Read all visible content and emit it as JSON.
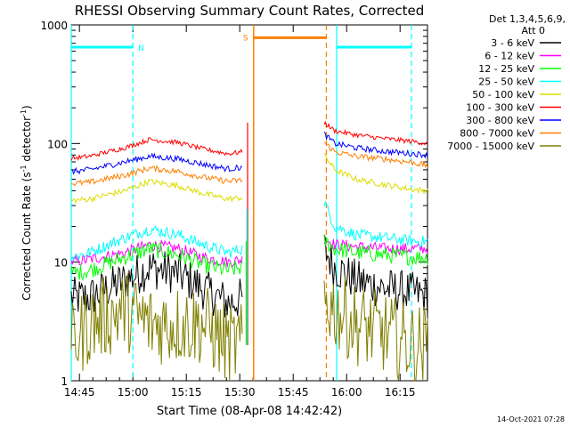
{
  "chart_data": {
    "type": "line",
    "title": "RHESSI Observing Summary Count Rates, Corrected",
    "xlabel": "Start Time (08-Apr-08 14:42:42)",
    "ylabel_main": "Corrected Count Rate (s",
    "ylabel_sup1": "-1",
    "ylabel_mid": " detector",
    "ylabel_sup2": "-1",
    "ylabel_end": ")",
    "yscale": "log",
    "ylim": [
      1,
      1000
    ],
    "xlim_minutes": [
      0,
      100
    ],
    "x_ticks": [
      "14:45",
      "15:00",
      "15:15",
      "15:30",
      "15:45",
      "16:00",
      "16:15"
    ],
    "y_ticks": [
      "1",
      "10",
      "100",
      "1000"
    ],
    "legend": {
      "header1": "Det 1,3,4,5,6,9,",
      "header2": "Att 0",
      "placement": "right"
    },
    "series": [
      {
        "name": "3 - 6 keV",
        "color": "#000000",
        "pre": [
          5,
          5,
          7,
          9,
          8,
          6,
          4.5,
          5
        ],
        "post": [
          13,
          9,
          7,
          6,
          5.5,
          5.2
        ],
        "noise": 0.18
      },
      {
        "name": "6 - 12 keV",
        "color": "#ff00ff",
        "pre": [
          10,
          10.5,
          12,
          14,
          13,
          11,
          10,
          10.5
        ],
        "post": [
          16,
          14,
          13.5,
          13,
          13,
          13
        ],
        "noise": 0.05
      },
      {
        "name": "12 - 25 keV",
        "color": "#00ff00",
        "pre": [
          8,
          8.5,
          11,
          13,
          11.5,
          9.5,
          8.5,
          9
        ],
        "post": [
          15,
          13,
          12,
          11.5,
          11,
          11
        ],
        "noise": 0.07
      },
      {
        "name": "25 - 50 keV",
        "color": "#00ffff",
        "pre": [
          11,
          12,
          16,
          19,
          17,
          14,
          12,
          13
        ],
        "post": [
          32,
          20,
          17,
          16,
          15,
          15
        ],
        "noise": 0.05
      },
      {
        "name": "50 - 100 keV",
        "color": "#dddd00",
        "pre": [
          33,
          34,
          40,
          48,
          44,
          38,
          34,
          35
        ],
        "post": [
          80,
          60,
          50,
          45,
          41,
          40
        ],
        "noise": 0.025
      },
      {
        "name": "100 - 300 keV",
        "color": "#ff0000",
        "pre": [
          75,
          78,
          92,
          108,
          102,
          90,
          82,
          85
        ],
        "post": [
          150,
          128,
          118,
          110,
          104,
          100
        ],
        "noise": 0.02
      },
      {
        "name": "300 - 800 keV",
        "color": "#0000ff",
        "pre": [
          58,
          60,
          70,
          78,
          74,
          67,
          61,
          63
        ],
        "post": [
          120,
          100,
          92,
          86,
          82,
          80
        ],
        "noise": 0.025
      },
      {
        "name": "800 - 7000 keV",
        "color": "#ff8000",
        "pre": [
          46,
          47,
          54,
          62,
          58,
          52,
          48,
          49
        ],
        "post": [
          102,
          85,
          78,
          74,
          69,
          65
        ],
        "noise": 0.025
      },
      {
        "name": "7000 - 15000 keV",
        "color": "#808000",
        "pre": [
          2,
          3,
          4,
          3,
          3,
          3,
          2,
          2
        ],
        "post": [
          5,
          4,
          3,
          2.5,
          2,
          2
        ],
        "noise": 0.35
      }
    ],
    "pre_x": [
      0,
      5,
      15,
      22,
      30,
      37,
      44,
      48
    ],
    "post_x": [
      71,
      74,
      80,
      88,
      96,
      100
    ],
    "flare_spike": [
      {
        "name": "red",
        "x": 49.5,
        "y": 150,
        "color": "#ff0000"
      },
      {
        "name": "cyan",
        "x": 49.3,
        "y": 28,
        "color": "#00ffff"
      },
      {
        "name": "green",
        "x": 49.1,
        "y": 15,
        "color": "#00ff00"
      }
    ],
    "annotations": {
      "night_cyan": [
        {
          "x1": 0,
          "x2": 17.3,
          "label": "N"
        },
        {
          "x1": 74.5,
          "x2": 95.5,
          "label": ""
        }
      ],
      "saa_orange": [
        {
          "x1": 51.2,
          "x2": 71.6,
          "label": "S"
        }
      ],
      "line_value": 650
    },
    "stamp": "14-Oct-2021 07:28"
  }
}
